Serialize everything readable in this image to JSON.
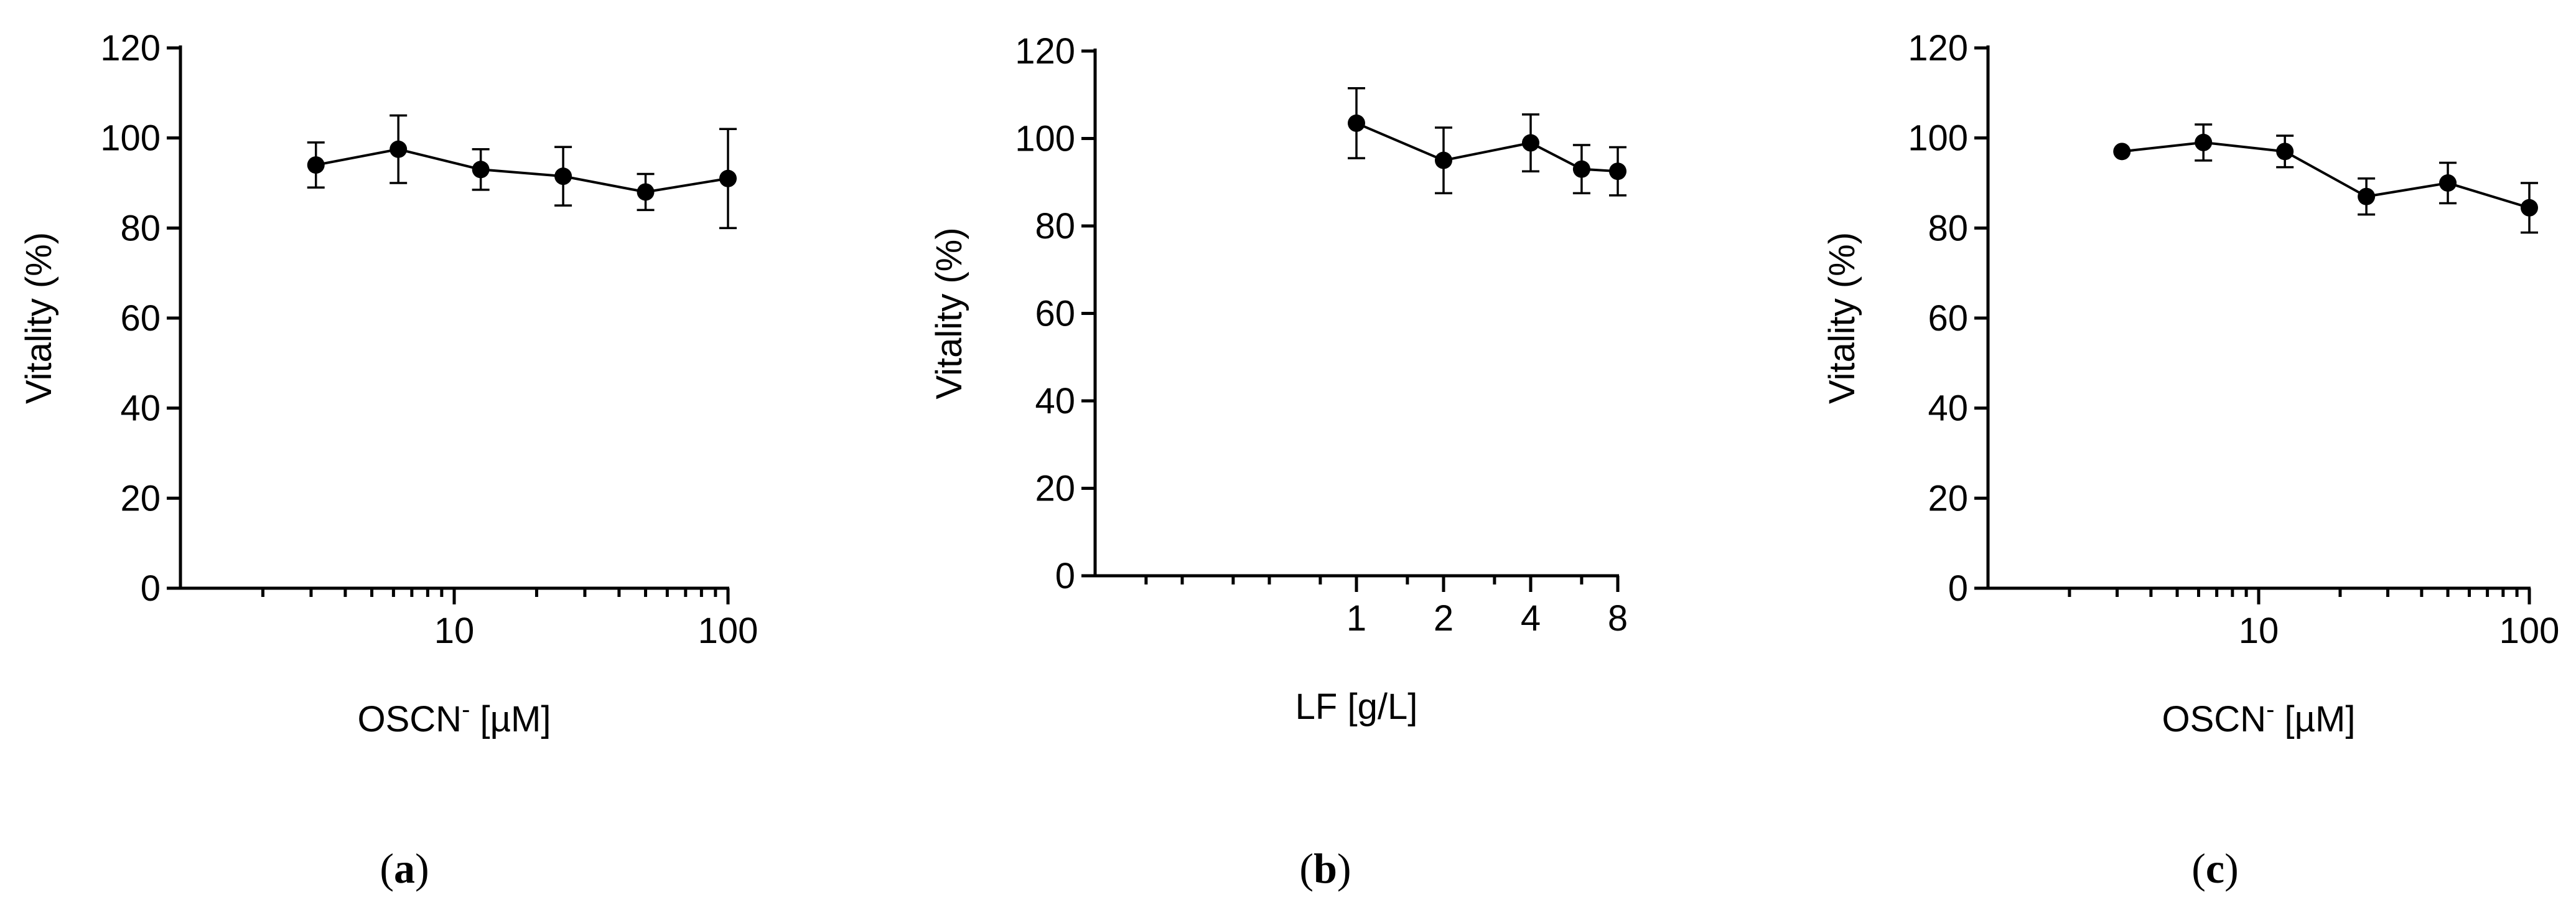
{
  "chart_data": [
    {
      "type": "line",
      "panel": "a",
      "xscale": "log",
      "xlim": [
        1,
        100
      ],
      "ylim": [
        0,
        120
      ],
      "yticks": [
        0,
        20,
        40,
        60,
        80,
        100,
        120
      ],
      "xticks": [
        10,
        100
      ],
      "x": [
        3.125,
        6.25,
        12.5,
        25,
        50,
        100
      ],
      "y": [
        94,
        97.5,
        93,
        91.5,
        88,
        91
      ],
      "yerr": [
        5,
        7.5,
        4.5,
        6.5,
        4,
        11
      ],
      "xlabel": "OSCN",
      "xlabel_sup": "-",
      "xlabel_unit": " [µM]",
      "ylabel": "Vitality (%)",
      "panel_label": "a"
    },
    {
      "type": "line",
      "panel": "b",
      "xscale": "log2",
      "xlim": [
        0.125,
        8
      ],
      "ylim": [
        0,
        120
      ],
      "yticks": [
        0,
        20,
        40,
        60,
        80,
        100,
        120
      ],
      "xticks": [
        1,
        2,
        4,
        8
      ],
      "x": [
        1,
        2,
        4,
        6,
        8
      ],
      "y": [
        103.5,
        95,
        99,
        93,
        92.5
      ],
      "yerr": [
        8,
        7.5,
        6.5,
        5.5,
        5.5
      ],
      "xlabel": "LF [g/L]",
      "xlabel_sup": "",
      "xlabel_unit": "",
      "ylabel": "Vitality (%)",
      "panel_label": "b"
    },
    {
      "type": "line",
      "panel": "c",
      "xscale": "log",
      "xlim": [
        1,
        100
      ],
      "ylim": [
        0,
        120
      ],
      "yticks": [
        0,
        20,
        40,
        60,
        80,
        100,
        120
      ],
      "xticks": [
        10,
        100
      ],
      "x": [
        3.125,
        6.25,
        12.5,
        25,
        50,
        100
      ],
      "y": [
        97,
        99,
        97,
        87,
        90,
        84.5
      ],
      "yerr": [
        0,
        4,
        3.5,
        4,
        4.5,
        5.5
      ],
      "xlabel": "OSCN",
      "xlabel_sup": "-",
      "xlabel_unit": " [µM]",
      "ylabel": "Vitality (%)",
      "panel_label": "c"
    }
  ]
}
